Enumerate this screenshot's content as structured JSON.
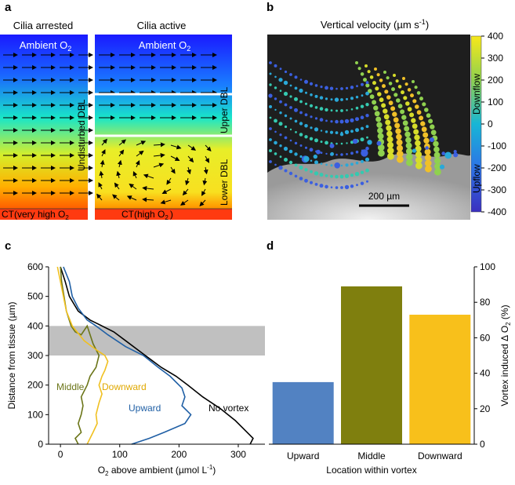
{
  "panels": {
    "a": {
      "label": "a",
      "arrested_title": "Cilia arrested",
      "active_title": "Cilia active",
      "ambient_label": "Ambient O",
      "ambient_sub": "2",
      "undisturbed_dbl": "Undisturbed DBL",
      "upper_dbl": "Upper DBL",
      "lower_dbl": "Lower DBL",
      "ct_arrested": "CT(very high O",
      "ct_arrested_sub": "2",
      "ct_active": "CT(high O",
      "ct_active_sub": "2",
      "ct_close": ")",
      "colors": {
        "top": "#1a1aff",
        "mid": "#19e6c8",
        "high": "#f4ee22",
        "bottom": "#ff3300"
      }
    },
    "b": {
      "label": "b",
      "title": "Vertical velocity (µm s",
      "title_sup": "-1",
      "title_close": ")",
      "scale_bar": "200 µm",
      "colorbar_ticks": [
        "400",
        "300",
        "200",
        "100",
        "0",
        "-100",
        "-200",
        "-300",
        "-400"
      ],
      "downflow": "Downflow",
      "upflow": "Upflow",
      "colors": {
        "low": "#3b2fbf",
        "mid": "#17b6d6",
        "high": "#f7e81a"
      }
    },
    "c": {
      "label": "c"
    },
    "d": {
      "label": "d"
    }
  },
  "chart_data": [
    {
      "type": "line",
      "panel": "c",
      "xlabel": "O",
      "xlabel_sub": "2",
      "xlabel_rest": " above ambient (µmol L",
      "xlabel_sup": "-1",
      "xlabel_close": ")",
      "ylabel": "Distance from tissue (µm)",
      "xlim": [
        -20,
        345
      ],
      "ylim": [
        0,
        600
      ],
      "xticks": [
        0,
        100,
        200,
        300
      ],
      "yticks": [
        0,
        100,
        200,
        300,
        400,
        500,
        600
      ],
      "shaded_band": [
        300,
        400
      ],
      "series": [
        {
          "name": "No vortex",
          "color": "#000000",
          "points": [
            [
              0,
              600
            ],
            [
              8,
              550
            ],
            [
              15,
              500
            ],
            [
              30,
              450
            ],
            [
              50,
              420
            ],
            [
              70,
              400
            ],
            [
              90,
              380
            ],
            [
              110,
              350
            ],
            [
              130,
              320
            ],
            [
              150,
              290
            ],
            [
              170,
              260
            ],
            [
              195,
              230
            ],
            [
              215,
              200
            ],
            [
              240,
              160
            ],
            [
              270,
              120
            ],
            [
              295,
              80
            ],
            [
              315,
              40
            ],
            [
              325,
              20
            ],
            [
              320,
              0
            ]
          ]
        },
        {
          "name": "Upward",
          "color": "#1f5fa5",
          "points": [
            [
              5,
              600
            ],
            [
              15,
              550
            ],
            [
              20,
              500
            ],
            [
              30,
              460
            ],
            [
              45,
              420
            ],
            [
              60,
              400
            ],
            [
              80,
              370
            ],
            [
              110,
              330
            ],
            [
              140,
              300
            ],
            [
              165,
              260
            ],
            [
              185,
              230
            ],
            [
              205,
              190
            ],
            [
              210,
              160
            ],
            [
              205,
              130
            ],
            [
              220,
              100
            ],
            [
              210,
              70
            ],
            [
              175,
              40
            ],
            [
              150,
              20
            ],
            [
              120,
              0
            ]
          ]
        },
        {
          "name": "Middle",
          "color": "#6b7518",
          "points": [
            [
              0,
              600
            ],
            [
              2,
              550
            ],
            [
              6,
              500
            ],
            [
              10,
              450
            ],
            [
              18,
              400
            ],
            [
              25,
              380
            ],
            [
              35,
              370
            ],
            [
              45,
              400
            ],
            [
              55,
              340
            ],
            [
              65,
              300
            ],
            [
              60,
              260
            ],
            [
              50,
              230
            ],
            [
              45,
              200
            ],
            [
              35,
              160
            ],
            [
              38,
              130
            ],
            [
              35,
              100
            ],
            [
              30,
              70
            ],
            [
              35,
              40
            ],
            [
              25,
              20
            ],
            [
              30,
              0
            ]
          ]
        },
        {
          "name": "Downward",
          "color": "#f0c020",
          "points": [
            [
              -5,
              600
            ],
            [
              0,
              550
            ],
            [
              5,
              500
            ],
            [
              10,
              450
            ],
            [
              20,
              400
            ],
            [
              40,
              350
            ],
            [
              60,
              320
            ],
            [
              75,
              300
            ],
            [
              80,
              280
            ],
            [
              75,
              250
            ],
            [
              70,
              230
            ],
            [
              65,
              200
            ],
            [
              70,
              170
            ],
            [
              65,
              140
            ],
            [
              60,
              100
            ],
            [
              62,
              70
            ],
            [
              55,
              40
            ],
            [
              50,
              20
            ],
            [
              45,
              0
            ]
          ]
        }
      ],
      "labels": {
        "no_vortex": "No vortex",
        "upward": "Upward",
        "middle": "Middle",
        "downward": "Downward"
      }
    },
    {
      "type": "bar",
      "panel": "d",
      "xlabel": "Location within vortex",
      "ylabel": "Vortex induced Δ O",
      "ylabel_sub": "2",
      "ylabel_rest": " (%)",
      "ylim": [
        0,
        100
      ],
      "yticks": [
        0,
        20,
        40,
        60,
        80,
        100
      ],
      "categories": [
        "Upward",
        "Middle",
        "Downward"
      ],
      "values": [
        35,
        89,
        73
      ],
      "colors": [
        "#5282c2",
        "#7f7f0e",
        "#f8c01b"
      ]
    }
  ]
}
